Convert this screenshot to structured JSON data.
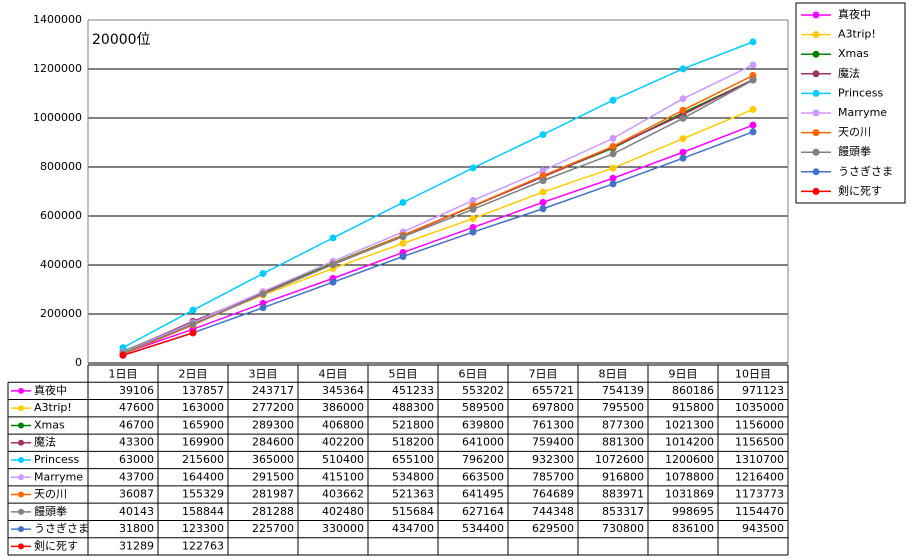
{
  "chart_data": {
    "type": "line",
    "annotation": "20000位",
    "categories": [
      "1日目",
      "2日目",
      "3日目",
      "4日目",
      "5日目",
      "6日目",
      "7日目",
      "8日目",
      "9日目",
      "10日目"
    ],
    "ylim": [
      0,
      1400000
    ],
    "yticks": [
      0,
      200000,
      400000,
      600000,
      800000,
      1000000,
      1200000,
      1400000
    ],
    "grid": true,
    "legend": "right",
    "series": [
      {
        "name": "真夜中",
        "color": "#ff00ff",
        "values": [
          39106,
          137857,
          243717,
          345364,
          451233,
          553202,
          655721,
          754139,
          860186,
          971123
        ]
      },
      {
        "name": "A3trip!",
        "color": "#ffcc00",
        "values": [
          47600,
          163000,
          277200,
          386000,
          488300,
          589500,
          697800,
          795500,
          915800,
          1035000
        ]
      },
      {
        "name": "Xmas",
        "color": "#008000",
        "values": [
          46700,
          165900,
          289300,
          406800,
          521800,
          639800,
          761300,
          877300,
          1021300,
          1156000
        ]
      },
      {
        "name": "魔法",
        "color": "#993366",
        "values": [
          43300,
          169900,
          284600,
          402200,
          518200,
          641000,
          759400,
          881300,
          1014200,
          1156500
        ]
      },
      {
        "name": "Princess",
        "color": "#00ccff",
        "values": [
          63000,
          215600,
          365000,
          510400,
          655100,
          796200,
          932300,
          1072600,
          1200600,
          1310700
        ]
      },
      {
        "name": "Marryme",
        "color": "#cc99ff",
        "values": [
          43700,
          164400,
          291500,
          415100,
          534800,
          663500,
          785700,
          916800,
          1078800,
          1216400
        ]
      },
      {
        "name": "天の川",
        "color": "#ff6600",
        "values": [
          36087,
          155329,
          281987,
          403662,
          521363,
          641495,
          764689,
          883971,
          1031869,
          1173773
        ]
      },
      {
        "name": "饅頭拳",
        "color": "#808080",
        "values": [
          40143,
          158844,
          281288,
          402480,
          515684,
          627164,
          744348,
          853317,
          998695,
          1154470
        ]
      },
      {
        "name": "うさぎさま",
        "color": "#4472c4",
        "values": [
          31800,
          123300,
          225700,
          330000,
          434700,
          534400,
          629500,
          730800,
          836100,
          943500
        ]
      },
      {
        "name": "剣に死す",
        "color": "#ff0000",
        "values": [
          31289,
          122763,
          null,
          null,
          null,
          null,
          null,
          null,
          null,
          null
        ]
      }
    ]
  }
}
